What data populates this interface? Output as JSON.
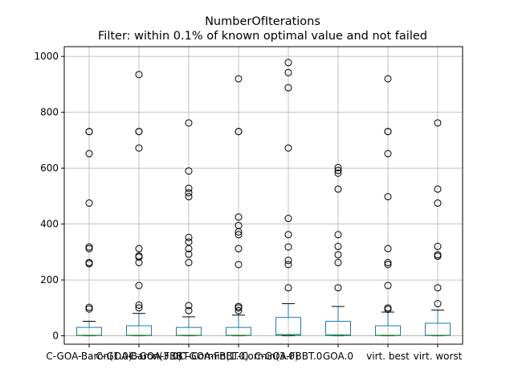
{
  "chart_data": {
    "type": "box",
    "title": "NumberOfIterations",
    "subtitle": "Filter: within 0.1% of known optimal value and not failed",
    "xlabel": "",
    "ylabel": "",
    "ylim": [
      -30,
      1035
    ],
    "yticks": [
      0,
      200,
      400,
      600,
      800,
      1000
    ],
    "grid": true,
    "categories": [
      "C-GOA-Baron(1.0)",
      "C-GOA-Baron(3.0)",
      "C-GOA-FBBT-Cormin(1.0)",
      "C-GOA-FBBT-Cormin(3.0)",
      "C-GOA-FBBT.0",
      "GOA.0",
      "virt. best",
      "virt. worst"
    ],
    "boxes": [
      {
        "whisker_low": 0,
        "q1": 1,
        "median": 2,
        "q3": 30,
        "whisker_high": 52,
        "outliers": [
          96,
          102,
          258,
          262,
          312,
          318,
          475,
          652,
          731,
          731
        ]
      },
      {
        "whisker_low": 0,
        "q1": 1,
        "median": 2,
        "q3": 36,
        "whisker_high": 80,
        "outliers": [
          100,
          110,
          180,
          262,
          282,
          286,
          312,
          672,
          731,
          731,
          935
        ]
      },
      {
        "whisker_low": 0,
        "q1": 1,
        "median": 2,
        "q3": 30,
        "whisker_high": 68,
        "outliers": [
          90,
          108,
          262,
          292,
          312,
          336,
          352,
          498,
          512,
          528,
          590,
          762
        ]
      },
      {
        "whisker_low": 0,
        "q1": 1,
        "median": 2,
        "q3": 30,
        "whisker_high": 74,
        "outliers": [
          90,
          100,
          105,
          255,
          312,
          362,
          372,
          395,
          425,
          731,
          731,
          920
        ]
      },
      {
        "whisker_low": 0,
        "q1": 2,
        "median": 5,
        "q3": 66,
        "whisker_high": 115,
        "outliers": [
          172,
          255,
          270,
          318,
          362,
          420,
          672,
          888,
          942,
          978
        ]
      },
      {
        "whisker_low": 0,
        "q1": 1,
        "median": 4,
        "q3": 52,
        "whisker_high": 105,
        "outliers": [
          172,
          262,
          290,
          320,
          362,
          525,
          582,
          592,
          602
        ]
      },
      {
        "whisker_low": 0,
        "q1": 1,
        "median": 2,
        "q3": 36,
        "whisker_high": 85,
        "outliers": [
          95,
          100,
          180,
          255,
          262,
          312,
          498,
          652,
          731,
          731,
          920
        ]
      },
      {
        "whisker_low": 0,
        "q1": 1,
        "median": 2,
        "q3": 45,
        "whisker_high": 92,
        "outliers": [
          115,
          172,
          285,
          290,
          320,
          475,
          525,
          762
        ]
      }
    ],
    "colors": {
      "box": "#1f77b4",
      "median": "#2ca02c",
      "whisker": "#000000",
      "grid": "#b0b0b0"
    }
  }
}
